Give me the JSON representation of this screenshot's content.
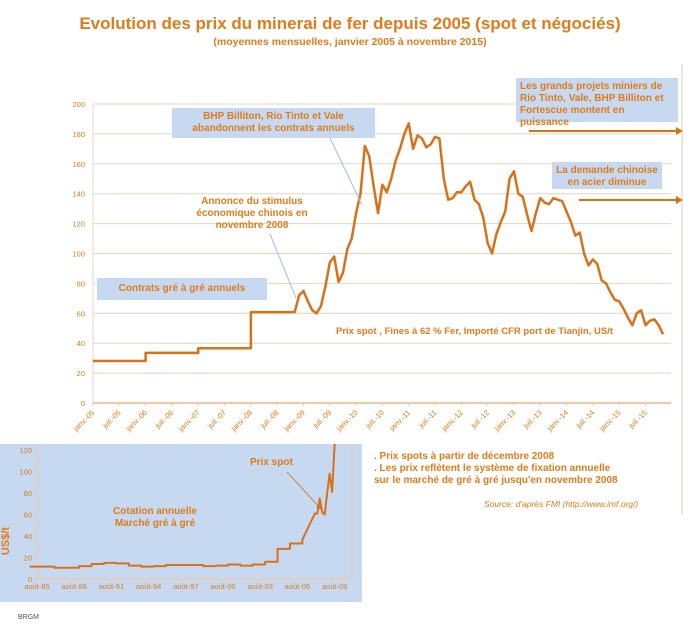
{
  "title": "Evolution des prix du minerai de fer depuis 2005 (spot et négociés)",
  "subtitle": "(moyennes mensuelles, janvier 2005 à novembre 2015)",
  "colors": {
    "line": "#d8721a",
    "text": "#e07b1a",
    "box": "#c6d9f0",
    "grid": "#ddd8bf",
    "axis": "#edc9a8"
  },
  "annotations": {
    "bhp": "BHP Billiton, Rio Tinto et Vale abandonnent les contrats annuels",
    "stimulus": "Annonce du stimulus économique chinois en novembre 2008",
    "contrats": "Contrats gré à gré annuels",
    "projets": "Les grands projets miniers de Rio Tinto, Vale, BHP Billiton et Fortescue montent en puissance",
    "demande": "La demande chinoise en acier diminue",
    "series_label": "Prix spot , Fines à 62 % Fer, Importé CFR port de Tianjin, US/t"
  },
  "notes": {
    "line1": ". Prix spots à partir de décembre 2008",
    "line2": ". Les prix reflètent le système de fixation annuelle",
    "line3": "sur le marché de gré à gré jusqu'en novembre 2008",
    "source": "Source:  d'après FMI (http://www.imf.org/)"
  },
  "footer": "BRGM",
  "chart_data": [
    {
      "type": "line",
      "title": "Evolution des prix du minerai de fer depuis 2005 (spot et négociés)",
      "ylim": [
        0,
        200
      ],
      "yticks": [
        0,
        20,
        40,
        60,
        80,
        100,
        120,
        140,
        160,
        180,
        200
      ],
      "grid": true,
      "x_start": "2005-01",
      "x_end": "2015-11",
      "xticks": [
        "janv.-05",
        "juil.-05",
        "janv.-06",
        "juil.-06",
        "janv.-07",
        "juil.-07",
        "janv.-08",
        "juil.-08",
        "janv.-09",
        "juil.-09",
        "janv.-10",
        "juil.-10",
        "janv.-11",
        "juil.-11",
        "janv.-12",
        "juil.-12",
        "janv.-13",
        "juil.-13",
        "janv.-14",
        "juil.-14",
        "janv.-15",
        "juil.-15"
      ],
      "values": [
        28.1,
        28.1,
        28.1,
        28.1,
        28.1,
        28.1,
        28.1,
        28.1,
        28.1,
        28.1,
        28.1,
        28.1,
        33.5,
        33.5,
        33.5,
        33.5,
        33.5,
        33.5,
        33.5,
        33.5,
        33.5,
        33.5,
        33.5,
        33.5,
        36.6,
        36.6,
        36.6,
        36.6,
        36.6,
        36.6,
        36.6,
        36.6,
        36.6,
        36.6,
        36.6,
        36.6,
        60.8,
        60.8,
        60.8,
        60.8,
        60.8,
        60.8,
        60.8,
        60.8,
        60.8,
        60.8,
        60.8,
        72,
        75,
        68,
        62,
        60,
        65,
        78,
        94,
        98,
        81,
        87,
        103,
        110,
        127,
        140,
        172,
        165,
        145,
        127,
        146,
        141,
        150,
        162,
        170,
        180,
        187,
        170,
        179,
        177,
        171,
        173,
        178,
        177,
        150,
        136,
        137,
        141,
        141,
        145,
        148,
        136,
        133,
        124,
        107,
        100,
        113,
        121,
        128,
        150,
        155,
        140,
        138,
        126,
        115,
        127,
        137,
        134,
        133,
        137,
        136,
        135,
        128,
        121,
        112,
        114,
        100,
        92,
        96,
        93,
        82,
        80,
        74,
        69,
        68,
        63,
        57,
        52,
        60,
        62,
        52,
        55,
        56,
        52,
        46
      ]
    },
    {
      "type": "line",
      "title": "",
      "ylabel": "US$/t",
      "ylim": [
        0,
        120
      ],
      "yticks": [
        0,
        20,
        40,
        60,
        80,
        100,
        120
      ],
      "xticks": [
        "août-85",
        "août-88",
        "août-91",
        "août-94",
        "août-97",
        "août-00",
        "août-03",
        "août-06",
        "août-09"
      ],
      "labels": {
        "annual": "Cotation annuelle Marché gré à gré",
        "spot": "Prix spot"
      },
      "annual_years": [
        1985,
        1986,
        1987,
        1988,
        1989,
        1990,
        1991,
        1992,
        1993,
        1994,
        1995,
        1996,
        1997,
        1998,
        1999,
        2000,
        2001,
        2002,
        2003,
        2004,
        2005,
        2006,
        2007
      ],
      "annual_values": [
        11.5,
        11.5,
        10.5,
        10.5,
        12,
        14,
        15,
        14.5,
        12.5,
        11.5,
        12,
        13,
        13,
        13,
        12,
        12.5,
        13.5,
        12.5,
        13.5,
        16,
        28,
        33,
        36.6
      ],
      "spot_2008_2009": [
        60.8,
        60.8,
        75,
        62,
        60,
        80,
        98,
        81,
        125
      ]
    }
  ]
}
